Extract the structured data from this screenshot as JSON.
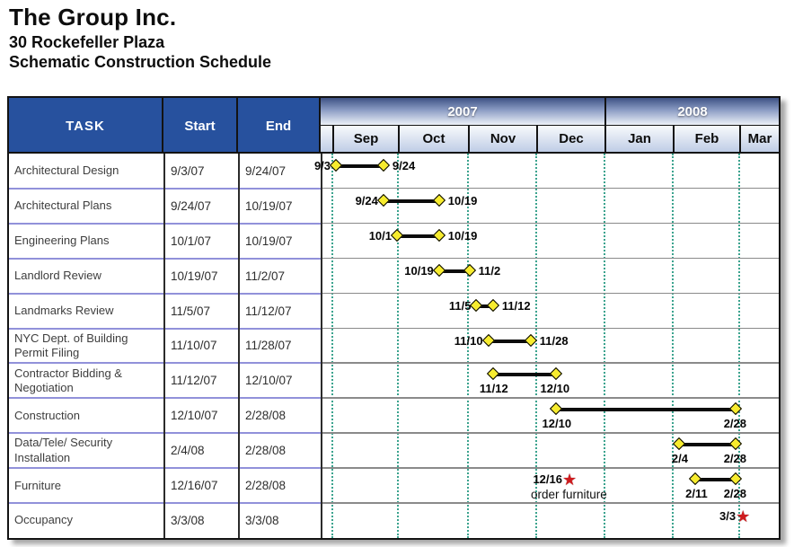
{
  "page": {
    "title_lines": [
      "The Group Inc.",
      "30 Rockefeller Plaza",
      "Schematic Construction Schedule"
    ]
  },
  "colors": {
    "header_navy": "#27519E",
    "year_gradient_top": "#3D5184",
    "year_gradient_bottom": "#EDF1F8",
    "month_gradient_top": "#F8FAFC",
    "month_gradient_bottom": "#BFCDE6",
    "bar": "#0B0B0B",
    "diamond_yellow": "#F7EC2E",
    "milestone_star_red": "#CE1B1E",
    "month_gridline_teal": "#3BA38E",
    "row_separator_left": "#9191DA",
    "row_separator_right": "#8A8A8A"
  },
  "chart_data": {
    "type": "bar",
    "variant": "gantt-schedule",
    "title": "Schematic Construction Schedule",
    "columns": [
      "TASK",
      "Start",
      "End"
    ],
    "years": [
      {
        "label": "2007",
        "months": [
          "Sep",
          "Oct",
          "Nov",
          "Dec"
        ]
      },
      {
        "label": "2008",
        "months": [
          "Jan",
          "Feb",
          "Mar"
        ]
      }
    ],
    "months": [
      "Sep",
      "Oct",
      "Nov",
      "Dec",
      "Jan",
      "Feb",
      "Mar"
    ],
    "legend": "yellow diamonds mark bar start/end; red star marks milestone",
    "tasks": [
      {
        "name": "Architectural Design",
        "start": "9/3/07",
        "end": "9/24/07",
        "bar": {
          "from": "9/3",
          "to": "9/24",
          "label_position": "side"
        }
      },
      {
        "name": "Architectural Plans",
        "start": "9/24/07",
        "end": "10/19/07",
        "bar": {
          "from": "9/24",
          "to": "10/19",
          "label_position": "side"
        }
      },
      {
        "name": "Engineering Plans",
        "start": "10/1/07",
        "end": "10/19/07",
        "bar": {
          "from": "10/1",
          "to": "10/19",
          "label_position": "side"
        }
      },
      {
        "name": "Landlord Review",
        "start": "10/19/07",
        "end": "11/2/07",
        "bar": {
          "from": "10/19",
          "to": "11/2",
          "label_position": "side"
        }
      },
      {
        "name": "Landmarks Review",
        "start": "11/5/07",
        "end": "11/12/07",
        "bar": {
          "from": "11/5",
          "to": "11/12",
          "label_position": "side"
        }
      },
      {
        "name": "NYC Dept. of Building Permit Filing",
        "start": "11/10/07",
        "end": "11/28/07",
        "bar": {
          "from": "11/10",
          "to": "11/28",
          "label_position": "side"
        }
      },
      {
        "name": "Contractor Bidding & Negotiation",
        "start": "11/12/07",
        "end": "12/10/07",
        "bar": {
          "from": "11/12",
          "to": "12/10",
          "label_position": "below"
        }
      },
      {
        "name": "Construction",
        "start": "12/10/07",
        "end": "2/28/08",
        "bar": {
          "from": "12/10",
          "to": "2/28",
          "label_position": "below"
        }
      },
      {
        "name": "Data/Tele/ Security Installation",
        "start": "2/4/08",
        "end": "2/28/08",
        "bar": {
          "from": "2/4",
          "to": "2/28",
          "label_position": "below"
        }
      },
      {
        "name": "Furniture",
        "start": "12/16/07",
        "end": "2/28/08",
        "bar": {
          "from": "2/11",
          "to": "2/28",
          "label_position": "below"
        },
        "milestone": {
          "date": "12/16",
          "label": "12/16",
          "note": "order furniture"
        }
      },
      {
        "name": "Occupancy",
        "start": "3/3/08",
        "end": "3/3/08",
        "milestone": {
          "date": "3/3",
          "label": "3/3"
        }
      }
    ]
  }
}
